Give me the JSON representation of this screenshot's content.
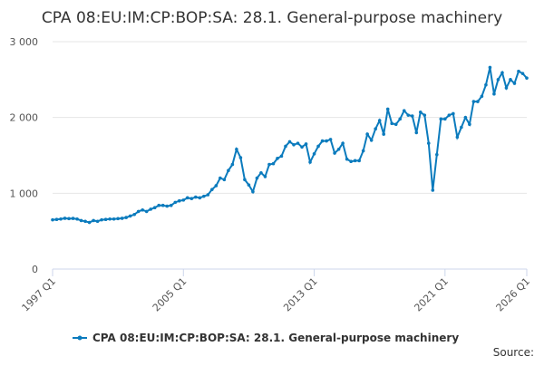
{
  "chart_data": {
    "type": "line",
    "title": "CPA 08:EU:IM:CP:BOP:SA: 28.1. General-purpose machinery",
    "source": "Source:",
    "categories": [
      "1997 Q1",
      null,
      null,
      null,
      null,
      null,
      null,
      null,
      null,
      null,
      null,
      null,
      null,
      null,
      null,
      null,
      null,
      null,
      null,
      null,
      null,
      null,
      null,
      null,
      null,
      null,
      null,
      null,
      null,
      null,
      null,
      null,
      "2005 Q1",
      null,
      null,
      null,
      null,
      null,
      null,
      null,
      null,
      null,
      null,
      null,
      null,
      null,
      null,
      null,
      null,
      null,
      null,
      null,
      null,
      null,
      null,
      null,
      null,
      null,
      null,
      null,
      null,
      null,
      null,
      null,
      "2013 Q1",
      null,
      null,
      null,
      null,
      null,
      null,
      null,
      null,
      null,
      null,
      null,
      null,
      null,
      null,
      null,
      null,
      null,
      null,
      null,
      null,
      null,
      null,
      null,
      null,
      null,
      null,
      null,
      null,
      null,
      null,
      null,
      "2021 Q1",
      null,
      null,
      null,
      null,
      null,
      null,
      null,
      null,
      null,
      null,
      null,
      null,
      null,
      null,
      null,
      null,
      null,
      null,
      null,
      "2026 Q1"
    ],
    "series": [
      {
        "name": "CPA 08:EU:IM:CP:BOP:SA: 28.1. General-purpose machinery",
        "color": "#0b7bbd",
        "values": [
          650,
          655,
          660,
          670,
          665,
          668,
          660,
          640,
          630,
          615,
          640,
          630,
          650,
          655,
          660,
          660,
          665,
          670,
          680,
          700,
          720,
          760,
          780,
          760,
          790,
          810,
          840,
          840,
          830,
          840,
          880,
          900,
          910,
          940,
          930,
          950,
          940,
          960,
          980,
          1050,
          1100,
          1200,
          1180,
          1300,
          1380,
          1580,
          1470,
          1180,
          1110,
          1020,
          1200,
          1270,
          1220,
          1380,
          1390,
          1460,
          1490,
          1620,
          1680,
          1640,
          1660,
          1610,
          1650,
          1410,
          1520,
          1620,
          1690,
          1690,
          1710,
          1530,
          1580,
          1660,
          1450,
          1420,
          1430,
          1430,
          1560,
          1780,
          1700,
          1850,
          1960,
          1780,
          2110,
          1920,
          1910,
          1980,
          2090,
          2030,
          2020,
          1800,
          2070,
          2030,
          1660,
          1040,
          1510,
          1980,
          1980,
          2030,
          2050,
          1740,
          1870,
          2000,
          1910,
          2210,
          2210,
          2280,
          2430,
          2660,
          2310,
          2500,
          2590,
          2390,
          2500,
          2450,
          2610,
          2580,
          2520
        ]
      }
    ],
    "ylim": [
      0,
      3000
    ],
    "yticks": [
      0,
      {
        "value": 1000,
        "label": "1 000"
      },
      {
        "value": 2000,
        "label": "2 000"
      },
      {
        "value": 3000,
        "label": "3 000"
      }
    ],
    "grid": true
  }
}
